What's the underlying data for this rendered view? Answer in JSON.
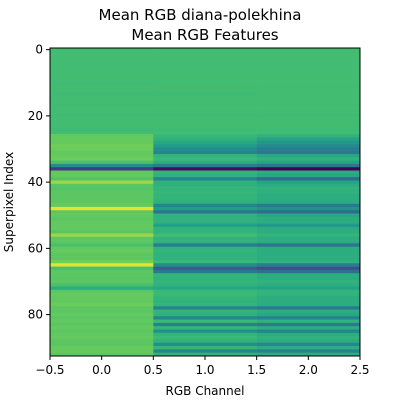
{
  "chart_data": {
    "type": "heatmap",
    "title": "Mean RGB diana-polekhina",
    "subtitle": "Mean RGB Features",
    "xlabel": "RGB Channel",
    "ylabel": "Superpixel Index",
    "xlim": [
      -0.5,
      2.5
    ],
    "ylim": [
      92.5,
      -0.5
    ],
    "x_ticks": [
      -0.5,
      0.0,
      0.5,
      1.0,
      1.5,
      2.0,
      2.5
    ],
    "x_tick_labels": [
      "−0.5",
      "0.0",
      "0.5",
      "1.0",
      "1.5",
      "2.0",
      "2.5"
    ],
    "y_ticks": [
      0,
      20,
      40,
      60,
      80
    ],
    "y_tick_labels": [
      "0",
      "20",
      "40",
      "60",
      "80"
    ],
    "columns": [
      0,
      1,
      2
    ],
    "rows": 93,
    "colormap": "viridis",
    "color_range": [
      0,
      1
    ],
    "cell_values": [
      [
        0.78,
        0.78,
        0.78
      ],
      [
        0.78,
        0.78,
        0.78
      ],
      [
        0.78,
        0.78,
        0.78
      ],
      [
        0.78,
        0.78,
        0.78
      ],
      [
        0.78,
        0.78,
        0.78
      ],
      [
        0.78,
        0.78,
        0.78
      ],
      [
        0.78,
        0.78,
        0.78
      ],
      [
        0.78,
        0.78,
        0.78
      ],
      [
        0.78,
        0.78,
        0.78
      ],
      [
        0.78,
        0.78,
        0.78
      ],
      [
        0.77,
        0.78,
        0.78
      ],
      [
        0.78,
        0.78,
        0.78
      ],
      [
        0.78,
        0.78,
        0.78
      ],
      [
        0.77,
        0.77,
        0.78
      ],
      [
        0.78,
        0.78,
        0.78
      ],
      [
        0.78,
        0.78,
        0.78
      ],
      [
        0.78,
        0.78,
        0.78
      ],
      [
        0.77,
        0.78,
        0.78
      ],
      [
        0.78,
        0.78,
        0.78
      ],
      [
        0.78,
        0.78,
        0.78
      ],
      [
        0.77,
        0.77,
        0.77
      ],
      [
        0.78,
        0.78,
        0.78
      ],
      [
        0.78,
        0.78,
        0.78
      ],
      [
        0.78,
        0.78,
        0.78
      ],
      [
        0.77,
        0.77,
        0.77
      ],
      [
        0.78,
        0.78,
        0.78
      ],
      [
        0.85,
        0.75,
        0.72
      ],
      [
        0.86,
        0.72,
        0.66
      ],
      [
        0.86,
        0.68,
        0.6
      ],
      [
        0.88,
        0.62,
        0.54
      ],
      [
        0.87,
        0.55,
        0.48
      ],
      [
        0.85,
        0.52,
        0.46
      ],
      [
        0.86,
        0.73,
        0.68
      ],
      [
        0.87,
        0.76,
        0.72
      ],
      [
        0.8,
        0.7,
        0.66
      ],
      [
        0.55,
        0.48,
        0.45
      ],
      [
        0.2,
        0.04,
        0.0
      ],
      [
        0.85,
        0.74,
        0.7
      ],
      [
        0.86,
        0.72,
        0.68
      ],
      [
        0.82,
        0.5,
        0.4
      ],
      [
        0.92,
        0.72,
        0.66
      ],
      [
        0.83,
        0.72,
        0.7
      ],
      [
        0.82,
        0.74,
        0.72
      ],
      [
        0.84,
        0.75,
        0.72
      ],
      [
        0.84,
        0.74,
        0.7
      ],
      [
        0.84,
        0.74,
        0.7
      ],
      [
        0.84,
        0.72,
        0.7
      ],
      [
        0.86,
        0.52,
        0.46
      ],
      [
        0.98,
        0.62,
        0.58
      ],
      [
        0.84,
        0.44,
        0.4
      ],
      [
        0.85,
        0.72,
        0.68
      ],
      [
        0.84,
        0.72,
        0.7
      ],
      [
        0.85,
        0.72,
        0.7
      ],
      [
        0.85,
        0.64,
        0.6
      ],
      [
        0.86,
        0.73,
        0.7
      ],
      [
        0.83,
        0.72,
        0.7
      ],
      [
        0.92,
        0.78,
        0.74
      ],
      [
        0.84,
        0.72,
        0.7
      ],
      [
        0.84,
        0.72,
        0.7
      ],
      [
        0.8,
        0.48,
        0.44
      ],
      [
        0.85,
        0.72,
        0.7
      ],
      [
        0.86,
        0.74,
        0.7
      ],
      [
        0.84,
        0.72,
        0.7
      ],
      [
        0.84,
        0.72,
        0.7
      ],
      [
        0.88,
        0.76,
        0.72
      ],
      [
        0.98,
        0.55,
        0.48
      ],
      [
        0.8,
        0.34,
        0.28
      ],
      [
        0.84,
        0.46,
        0.42
      ],
      [
        0.84,
        0.74,
        0.7
      ],
      [
        0.83,
        0.72,
        0.7
      ],
      [
        0.84,
        0.74,
        0.72
      ],
      [
        0.8,
        0.72,
        0.7
      ],
      [
        0.7,
        0.68,
        0.66
      ],
      [
        0.84,
        0.76,
        0.74
      ],
      [
        0.86,
        0.76,
        0.72
      ],
      [
        0.85,
        0.74,
        0.7
      ],
      [
        0.85,
        0.73,
        0.7
      ],
      [
        0.87,
        0.74,
        0.7
      ],
      [
        0.84,
        0.5,
        0.46
      ],
      [
        0.84,
        0.74,
        0.7
      ],
      [
        0.85,
        0.72,
        0.68
      ],
      [
        0.84,
        0.52,
        0.5
      ],
      [
        0.85,
        0.76,
        0.72
      ],
      [
        0.84,
        0.5,
        0.46
      ],
      [
        0.86,
        0.74,
        0.7
      ],
      [
        0.84,
        0.56,
        0.52
      ],
      [
        0.85,
        0.74,
        0.7
      ],
      [
        0.86,
        0.76,
        0.72
      ],
      [
        0.84,
        0.72,
        0.7
      ],
      [
        0.84,
        0.56,
        0.52
      ],
      [
        0.86,
        0.74,
        0.7
      ],
      [
        0.86,
        0.52,
        0.5
      ],
      [
        0.84,
        0.72,
        0.7
      ]
    ]
  }
}
